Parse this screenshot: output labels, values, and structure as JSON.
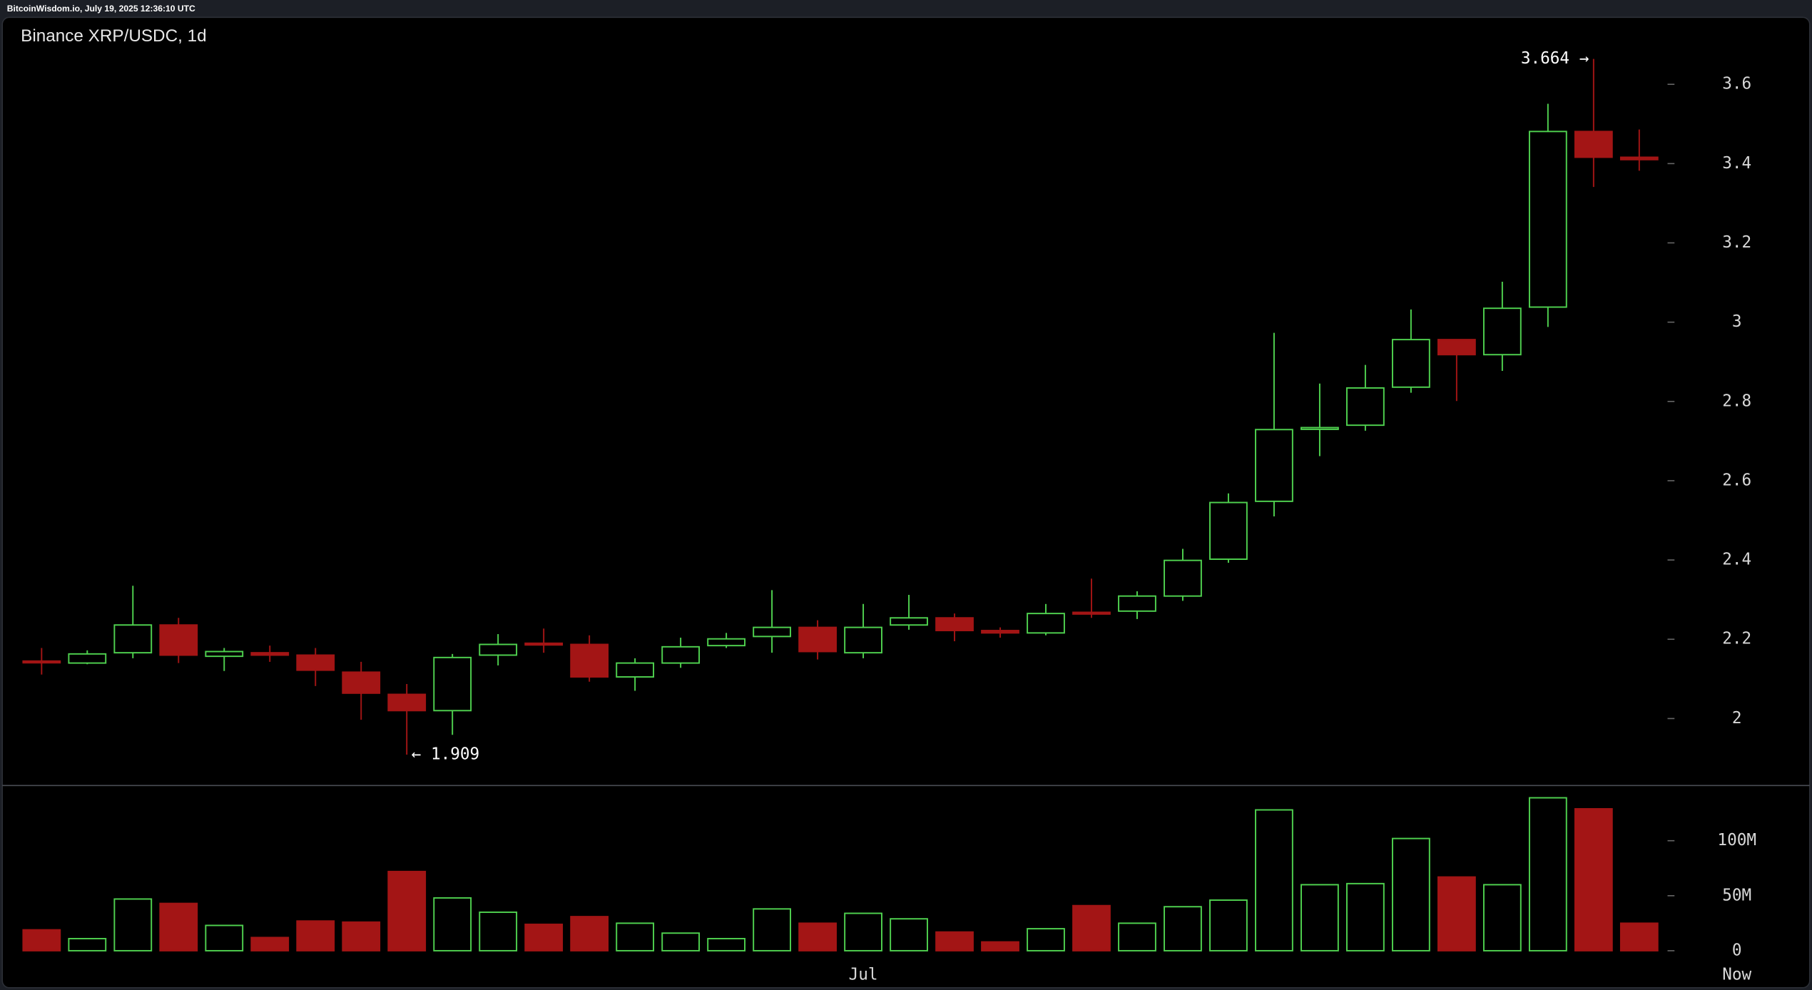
{
  "header": "BitcoinWisdom.io, July 19, 2025 12:36:10 UTC",
  "chart_data": {
    "type": "candlestick",
    "title": "Binance XRP/USDC, 1d",
    "categories": [
      null,
      null,
      null,
      null,
      null,
      null,
      null,
      null,
      null,
      null,
      null,
      null,
      null,
      null,
      null,
      null,
      null,
      null,
      "Jul",
      null,
      null,
      null,
      null,
      null,
      null,
      null,
      null,
      null,
      null,
      null,
      null,
      null,
      null,
      null,
      null,
      null
    ],
    "now_label": "Now",
    "open": [
      2.145,
      2.14,
      2.166,
      2.236,
      2.157,
      2.166,
      2.16,
      2.117,
      2.061,
      2.02,
      2.16,
      2.19,
      2.187,
      2.105,
      2.14,
      2.184,
      2.207,
      2.23,
      2.166,
      2.236,
      2.254,
      2.222,
      2.216,
      2.268,
      2.271,
      2.309,
      2.402,
      2.548,
      2.731,
      2.74,
      2.836,
      2.956,
      2.918,
      3.038,
      3.481,
      3.416
    ],
    "high": [
      2.178,
      2.172,
      2.335,
      2.254,
      2.178,
      2.184,
      2.178,
      2.143,
      2.087,
      2.163,
      2.213,
      2.227,
      2.21,
      2.152,
      2.204,
      2.216,
      2.324,
      2.248,
      2.289,
      2.312,
      2.265,
      2.23,
      2.289,
      2.353,
      2.321,
      2.428,
      2.568,
      2.973,
      2.845,
      2.892,
      3.032,
      2.956,
      3.102,
      3.551,
      3.664,
      3.486
    ],
    "low": [
      2.111,
      2.137,
      2.152,
      2.14,
      2.12,
      2.143,
      2.082,
      1.997,
      1.909,
      1.959,
      2.134,
      2.166,
      2.093,
      2.07,
      2.128,
      2.178,
      2.166,
      2.149,
      2.152,
      2.224,
      2.195,
      2.204,
      2.21,
      2.254,
      2.251,
      2.297,
      2.393,
      2.51,
      2.662,
      2.726,
      2.822,
      2.801,
      2.877,
      2.988,
      3.341,
      3.382
    ],
    "close": [
      2.143,
      2.163,
      2.236,
      2.16,
      2.169,
      2.16,
      2.122,
      2.064,
      2.02,
      2.154,
      2.187,
      2.187,
      2.105,
      2.14,
      2.181,
      2.201,
      2.23,
      2.169,
      2.23,
      2.254,
      2.222,
      2.216,
      2.265,
      2.265,
      2.309,
      2.399,
      2.545,
      2.729,
      2.734,
      2.834,
      2.956,
      2.918,
      3.035,
      3.481,
      3.416,
      3.41
    ],
    "volume": [
      19000000,
      11000000,
      47000000,
      43000000,
      23000000,
      12000000,
      27000000,
      26000000,
      72000000,
      48000000,
      35000000,
      24000000,
      31000000,
      25000000,
      16000000,
      11000000,
      38000000,
      25000000,
      34000000,
      29000000,
      17000000,
      8000000,
      20000000,
      41000000,
      25000000,
      40000000,
      46000000,
      128000000,
      60000000,
      61000000,
      102000000,
      67000000,
      60000000,
      139000000,
      129000000,
      25000000
    ],
    "up_color": "#4fd14f",
    "down_color": "#a31515",
    "ylim": [
      1.831,
      3.769
    ],
    "yticks": [
      2,
      2.2,
      2.4,
      2.6,
      2.8,
      3,
      3.2,
      3.4,
      3.6
    ],
    "volume_ylim": [
      0,
      147000000
    ],
    "volume_yticks": [
      0,
      {
        "value": 50000000,
        "label": "50M"
      },
      {
        "value": 100000000,
        "label": "100M"
      }
    ],
    "high_label": "3.664 →",
    "low_label": "← 1.909"
  }
}
